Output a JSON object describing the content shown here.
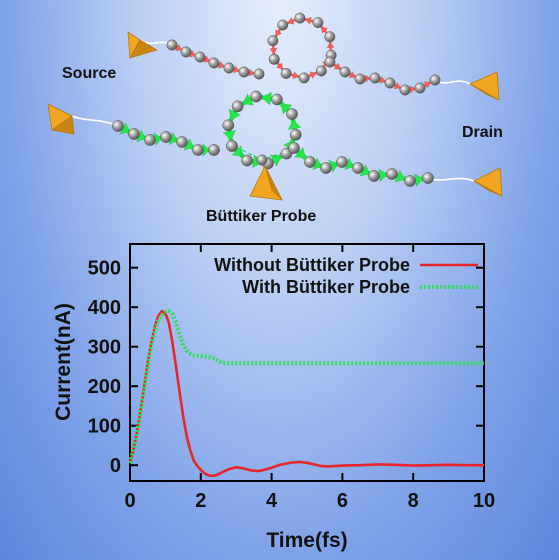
{
  "diagram": {
    "labels": {
      "source": "Source",
      "drain": "Drain",
      "probe": "Büttiker Probe"
    },
    "colors": {
      "electrode": "#f0a623",
      "atom": "#a9a9a9",
      "arrow_without_probe": "#ff5a5a",
      "arrow_with_probe": "#22e84a",
      "probe_coupling": "#24c8a0"
    }
  },
  "chart_data": {
    "type": "line",
    "title": "",
    "xlabel": "Time(fs)",
    "ylabel": "Current(nA)",
    "xlim": [
      0,
      10
    ],
    "ylim": [
      -40,
      560
    ],
    "xticks": [
      0,
      2,
      4,
      6,
      8,
      10
    ],
    "yticks": [
      0,
      100,
      200,
      300,
      400,
      500
    ],
    "grid": false,
    "legend_position": "top-right",
    "series": [
      {
        "name": "Without Büttiker Probe",
        "color": "#e8262a",
        "style": "solid",
        "x": [
          0,
          0.1,
          0.2,
          0.3,
          0.4,
          0.5,
          0.6,
          0.7,
          0.8,
          0.9,
          1.0,
          1.1,
          1.2,
          1.3,
          1.4,
          1.5,
          1.6,
          1.7,
          1.8,
          1.9,
          2.0,
          2.1,
          2.2,
          2.3,
          2.4,
          2.5,
          2.6,
          2.8,
          3.0,
          3.2,
          3.4,
          3.6,
          3.8,
          4.0,
          4.2,
          4.4,
          4.6,
          4.8,
          5.0,
          5.2,
          5.4,
          5.6,
          5.8,
          6.0,
          6.5,
          7.0,
          7.5,
          8.0,
          8.5,
          9.0,
          9.5,
          10.0
        ],
        "y": [
          5,
          40,
          85,
          140,
          200,
          260,
          310,
          350,
          378,
          390,
          385,
          360,
          310,
          250,
          185,
          125,
          75,
          38,
          12,
          -2,
          -12,
          -20,
          -25,
          -27,
          -26,
          -23,
          -18,
          -10,
          -5,
          -8,
          -13,
          -15,
          -12,
          -6,
          0,
          4,
          7,
          8,
          6,
          2,
          -2,
          -3,
          -2,
          -1,
          0,
          2,
          1,
          -1,
          0,
          1,
          0,
          0
        ]
      },
      {
        "name": "With Büttiker Probe",
        "color": "#2ee05a",
        "style": "dotted",
        "x": [
          0,
          0.1,
          0.2,
          0.3,
          0.4,
          0.5,
          0.6,
          0.7,
          0.8,
          0.9,
          1.0,
          1.1,
          1.2,
          1.3,
          1.4,
          1.5,
          1.6,
          1.7,
          1.8,
          1.9,
          2.0,
          2.2,
          2.4,
          2.5,
          2.6,
          2.8,
          3.0,
          3.5,
          4.0,
          5.0,
          6.0,
          7.0,
          8.0,
          9.0,
          10.0
        ],
        "y": [
          5,
          40,
          85,
          140,
          195,
          250,
          300,
          340,
          365,
          380,
          388,
          390,
          382,
          360,
          330,
          305,
          290,
          282,
          278,
          277,
          276,
          274,
          270,
          264,
          259,
          258,
          258,
          258,
          258,
          258,
          258,
          258,
          258,
          258,
          258
        ]
      }
    ]
  }
}
